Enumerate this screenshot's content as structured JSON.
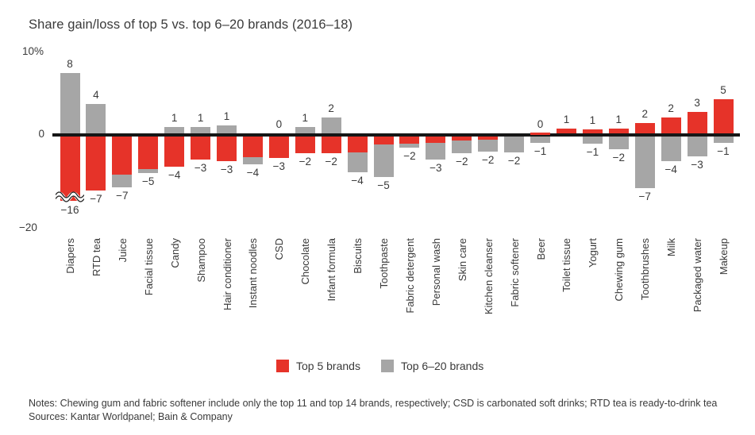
{
  "title": "Share gain/loss of top 5 vs. top 6–20 brands (2016–18)",
  "y_axis": {
    "top": "10%",
    "zero": "0",
    "bottom": "−20"
  },
  "legend": {
    "top5": "Top 5 brands",
    "top6_20": "Top 6–20 brands"
  },
  "footer": {
    "notes": "Notes: Chewing gum and fabric softener include only the top 11 and top 14 brands, respectively; CSD is carbonated soft drinks; RTD tea is ready-to-drink tea",
    "sources": "Sources: Kantar Worldpanel; Bain & Company"
  },
  "colors": {
    "top5": "#e63329",
    "top6_20": "#a6a6a6",
    "axis": "#161616",
    "text": "#3a3a3a"
  },
  "chart_data": {
    "type": "bar",
    "title": "Share gain/loss of top 5 vs. top 6–20 brands (2016–18)",
    "unit": "percentage points of market share",
    "ylim": [
      -20,
      10
    ],
    "grid": false,
    "legend_position": "bottom-center",
    "axis_break_note": "Diapers top-5 bar is truncated with an axis break; true value −16",
    "series": [
      {
        "key": "top5",
        "name": "Top 5 brands",
        "color": "#e63329"
      },
      {
        "key": "top6_20",
        "name": "Top 6–20 brands",
        "color": "#a6a6a6"
      }
    ],
    "categories": [
      {
        "label": "Diapers",
        "top5": -16,
        "top6_20": 8,
        "pos": {
          "series": "top6_20",
          "h": 8,
          "text": "8"
        },
        "neg": [
          {
            "series": "top5",
            "h": 8.6
          }
        ],
        "neg_text": "−16",
        "axis_break": true
      },
      {
        "label": "RTD tea",
        "top5": -7,
        "top6_20": 4,
        "pos": {
          "series": "top6_20",
          "h": 4,
          "text": "4"
        },
        "neg": [
          {
            "series": "top5",
            "h": 7.2
          }
        ],
        "neg_text": "−7"
      },
      {
        "label": "Juice",
        "top5": -5,
        "top6_20": -2,
        "neg": [
          {
            "series": "top5",
            "h": 5.2
          },
          {
            "series": "top6_20",
            "h": 1.6
          }
        ],
        "neg_text": "−7"
      },
      {
        "label": "Facial tissue",
        "top5": -4,
        "top6_20": -1,
        "neg": [
          {
            "series": "top5",
            "h": 4.4
          },
          {
            "series": "top6_20",
            "h": 0.5
          }
        ],
        "neg_text": "−5"
      },
      {
        "label": "Candy",
        "top5": -4,
        "top6_20": 1,
        "pos": {
          "series": "top6_20",
          "h": 1,
          "text": "1"
        },
        "neg": [
          {
            "series": "top5",
            "h": 4.1
          }
        ],
        "neg_text": "−4"
      },
      {
        "label": "Shampoo",
        "top5": -3,
        "top6_20": 1,
        "pos": {
          "series": "top6_20",
          "h": 1,
          "text": "1"
        },
        "neg": [
          {
            "series": "top5",
            "h": 3.2
          }
        ],
        "neg_text": "−3"
      },
      {
        "label": "Hair conditioner",
        "top5": -3,
        "top6_20": 1,
        "pos": {
          "series": "top6_20",
          "h": 1.2,
          "text": "1"
        },
        "neg": [
          {
            "series": "top5",
            "h": 3.4
          }
        ],
        "neg_text": "−3"
      },
      {
        "label": "Instant noodles",
        "top5": -3,
        "top6_20": -1,
        "neg": [
          {
            "series": "top5",
            "h": 2.9
          },
          {
            "series": "top6_20",
            "h": 0.9
          }
        ],
        "neg_text": "−4"
      },
      {
        "label": "CSD",
        "top5": -3,
        "top6_20": 0,
        "pos": {
          "series": "top6_20",
          "h": 0,
          "text": "0"
        },
        "neg": [
          {
            "series": "top5",
            "h": 3
          }
        ],
        "neg_text": "−3"
      },
      {
        "label": "Chocolate",
        "top5": -2,
        "top6_20": 1,
        "pos": {
          "series": "top6_20",
          "h": 1,
          "text": "1"
        },
        "neg": [
          {
            "series": "top5",
            "h": 2.4
          }
        ],
        "neg_text": "−2"
      },
      {
        "label": "Infant formula",
        "top5": -2,
        "top6_20": 2,
        "pos": {
          "series": "top6_20",
          "h": 2.3,
          "text": "2"
        },
        "neg": [
          {
            "series": "top5",
            "h": 2.4
          }
        ],
        "neg_text": "−2"
      },
      {
        "label": "Biscuits",
        "top5": -2,
        "top6_20": -2,
        "neg": [
          {
            "series": "top5",
            "h": 2.3
          },
          {
            "series": "top6_20",
            "h": 2.5
          }
        ],
        "neg_text": "−4"
      },
      {
        "label": "Toothpaste",
        "top5": -1,
        "top6_20": -4,
        "neg": [
          {
            "series": "top5",
            "h": 1.2
          },
          {
            "series": "top6_20",
            "h": 4.3
          }
        ],
        "neg_text": "−5"
      },
      {
        "label": "Fabric detergent",
        "top5": -1,
        "top6_20": -1,
        "neg": [
          {
            "series": "top5",
            "h": 1.1
          },
          {
            "series": "top6_20",
            "h": 0.5
          }
        ],
        "neg_text": "−2"
      },
      {
        "label": "Personal wash",
        "top5": -1,
        "top6_20": -2,
        "neg": [
          {
            "series": "top5",
            "h": 1.0
          },
          {
            "series": "top6_20",
            "h": 2.2
          }
        ],
        "neg_text": "−3"
      },
      {
        "label": "Skin care",
        "top5": -1,
        "top6_20": -1,
        "neg": [
          {
            "series": "top5",
            "h": 0.7
          },
          {
            "series": "top6_20",
            "h": 1.7
          }
        ],
        "neg_text": "−2"
      },
      {
        "label": "Kitchen cleanser",
        "top5": -1,
        "top6_20": -1,
        "neg": [
          {
            "series": "top5",
            "h": 0.6
          },
          {
            "series": "top6_20",
            "h": 1.6
          }
        ],
        "neg_text": "−2"
      },
      {
        "label": "Fabric softener",
        "top5": 0,
        "top6_20": -2,
        "neg": [
          {
            "series": "top6_20",
            "h": 2.3
          }
        ],
        "neg_text": "−2"
      },
      {
        "label": "Beer",
        "top5": 0,
        "top6_20": -1,
        "pos": {
          "series": "top5",
          "h": 0.3,
          "text": "0"
        },
        "neg": [
          {
            "series": "top6_20",
            "h": 1
          }
        ],
        "neg_text": "−1"
      },
      {
        "label": "Toilet tissue",
        "top5": 1,
        "top6_20": 0,
        "pos": {
          "series": "top5",
          "h": 0.8,
          "text": "1"
        },
        "neg": [],
        "neg_text": ""
      },
      {
        "label": "Yogurt",
        "top5": 1,
        "top6_20": -1,
        "pos": {
          "series": "top5",
          "h": 0.7,
          "text": "1"
        },
        "neg": [
          {
            "series": "top6_20",
            "h": 1.1
          }
        ],
        "neg_text": "−1"
      },
      {
        "label": "Chewing gum",
        "top5": 1,
        "top6_20": -2,
        "pos": {
          "series": "top5",
          "h": 0.8,
          "text": "1"
        },
        "neg": [
          {
            "series": "top6_20",
            "h": 1.9
          }
        ],
        "neg_text": "−2"
      },
      {
        "label": "Toothbrushes",
        "top5": 2,
        "top6_20": -7,
        "pos": {
          "series": "top5",
          "h": 1.5,
          "text": "2"
        },
        "neg": [
          {
            "series": "top6_20",
            "h": 6.9
          }
        ],
        "neg_text": "−7"
      },
      {
        "label": "Milk",
        "top5": 2,
        "top6_20": -4,
        "pos": {
          "series": "top5",
          "h": 2.3,
          "text": "2"
        },
        "neg": [
          {
            "series": "top6_20",
            "h": 3.4
          }
        ],
        "neg_text": "−4"
      },
      {
        "label": "Packaged water",
        "top5": 3,
        "top6_20": -3,
        "pos": {
          "series": "top5",
          "h": 3,
          "text": "3"
        },
        "neg": [
          {
            "series": "top6_20",
            "h": 2.8
          }
        ],
        "neg_text": "−3"
      },
      {
        "label": "Makeup",
        "top5": 5,
        "top6_20": -1,
        "pos": {
          "series": "top5",
          "h": 4.6,
          "text": "5"
        },
        "neg": [
          {
            "series": "top6_20",
            "h": 1
          }
        ],
        "neg_text": "−1"
      }
    ]
  }
}
